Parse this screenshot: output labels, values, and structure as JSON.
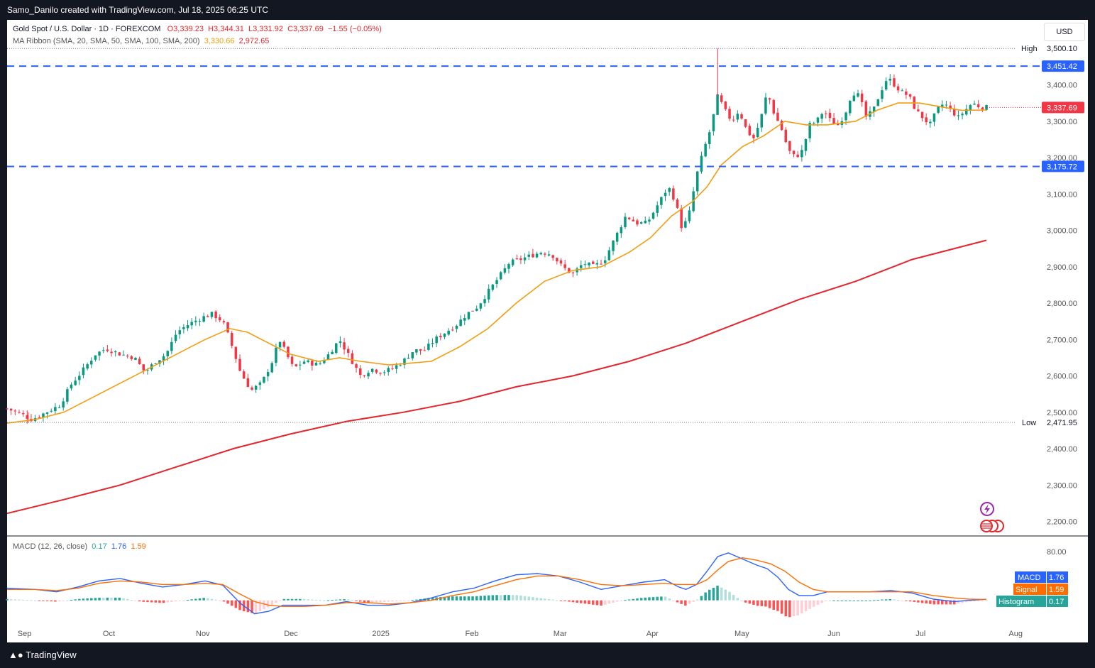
{
  "header": {
    "caption": "Samo_Danilo created with TradingView.com, Jul 18, 2025 06:25 UTC"
  },
  "legend": {
    "symbol": "Gold Spot / U.S. Dollar · 1D · FOREXCOM",
    "open": "O3,339.23",
    "high": "H3,344.31",
    "low": "L3,331.92",
    "close": "C3,337.69",
    "change": "−1.55 (−0.05%)",
    "ma_label": "MA Ribbon (SMA, 20, SMA, 50, SMA, 100, SMA, 200)",
    "ma_value_1": "3,330.66",
    "ma_value_2": "2,972.65",
    "macd_label": "MACD (12, 26, close)",
    "macd_value_1": "0.17",
    "macd_value_2": "1.76",
    "macd_value_3": "1.59"
  },
  "currency_button": "USD",
  "footer": {
    "brand": "TradingView"
  },
  "colors": {
    "up": "#089981",
    "down": "#f23645",
    "sma20": "#f29d0f",
    "sma200": "#e4262c",
    "level": "#2962ff",
    "macd": "#2962ff",
    "signal": "#ff6d00"
  },
  "chart_data": [
    {
      "type": "candlestick",
      "y_ticks": [
        "3,400.00",
        "3,300.00",
        "3,200.00",
        "3,100.00",
        "3,000.00",
        "2,900.00",
        "2,800.00",
        "2,700.00",
        "2,600.00",
        "2,500.00",
        "2,400.00",
        "2,300.00",
        "2,200.00"
      ],
      "x_ticks": [
        "Sep",
        "Oct",
        "Nov",
        "Dec",
        "2025",
        "Feb",
        "Mar",
        "Apr",
        "May",
        "Jun",
        "Jul",
        "Aug"
      ],
      "ylim": [
        2160,
        3520
      ],
      "labels": {
        "high_label": "High",
        "high_value": "3,500.10",
        "low_label": "Low",
        "low_value": "2,471.95",
        "resistance": "3,451.42",
        "support": "3,175.72",
        "last_price": "3,337.69"
      },
      "levels": {
        "high": 3500.1,
        "low": 2471.95,
        "resistance": 3451.42,
        "support": 3175.72,
        "last": 3337.69
      },
      "close_path": [
        [
          0,
          2510
        ],
        [
          20,
          2495
        ],
        [
          35,
          2480
        ],
        [
          55,
          2500
        ],
        [
          75,
          2520
        ],
        [
          90,
          2575
        ],
        [
          105,
          2610
        ],
        [
          125,
          2660
        ],
        [
          140,
          2675
        ],
        [
          160,
          2660
        ],
        [
          180,
          2650
        ],
        [
          195,
          2610
        ],
        [
          210,
          2640
        ],
        [
          225,
          2660
        ],
        [
          240,
          2720
        ],
        [
          255,
          2740
        ],
        [
          275,
          2760
        ],
        [
          290,
          2770
        ],
        [
          305,
          2750
        ],
        [
          315,
          2700
        ],
        [
          330,
          2610
        ],
        [
          345,
          2560
        ],
        [
          360,
          2580
        ],
        [
          375,
          2640
        ],
        [
          385,
          2700
        ],
        [
          395,
          2660
        ],
        [
          405,
          2620
        ],
        [
          420,
          2640
        ],
        [
          440,
          2630
        ],
        [
          455,
          2660
        ],
        [
          470,
          2700
        ],
        [
          485,
          2650
        ],
        [
          500,
          2600
        ],
        [
          515,
          2620
        ],
        [
          530,
          2610
        ],
        [
          545,
          2620
        ],
        [
          560,
          2640
        ],
        [
          575,
          2670
        ],
        [
          590,
          2670
        ],
        [
          605,
          2700
        ],
        [
          620,
          2720
        ],
        [
          635,
          2740
        ],
        [
          650,
          2770
        ],
        [
          665,
          2790
        ],
        [
          680,
          2830
        ],
        [
          695,
          2870
        ],
        [
          710,
          2910
        ],
        [
          725,
          2920
        ],
        [
          740,
          2930
        ],
        [
          755,
          2940
        ],
        [
          770,
          2935
        ],
        [
          785,
          2900
        ],
        [
          800,
          2880
        ],
        [
          815,
          2910
        ],
        [
          830,
          2900
        ],
        [
          845,
          2920
        ],
        [
          860,
          2980
        ],
        [
          875,
          3040
        ],
        [
          890,
          3020
        ],
        [
          905,
          3020
        ],
        [
          920,
          3070
        ],
        [
          935,
          3120
        ],
        [
          945,
          3080
        ],
        [
          955,
          3000
        ],
        [
          965,
          3050
        ],
        [
          975,
          3150
        ],
        [
          985,
          3220
        ],
        [
          995,
          3280
        ],
        [
          1005,
          3370
        ],
        [
          1015,
          3330
        ],
        [
          1025,
          3300
        ],
        [
          1035,
          3330
        ],
        [
          1045,
          3280
        ],
        [
          1055,
          3250
        ],
        [
          1065,
          3300
        ],
        [
          1075,
          3380
        ],
        [
          1085,
          3320
        ],
        [
          1095,
          3280
        ],
        [
          1105,
          3220
        ],
        [
          1115,
          3200
        ],
        [
          1125,
          3220
        ],
        [
          1135,
          3290
        ],
        [
          1145,
          3300
        ],
        [
          1155,
          3330
        ],
        [
          1165,
          3300
        ],
        [
          1175,
          3290
        ],
        [
          1185,
          3320
        ],
        [
          1195,
          3380
        ],
        [
          1205,
          3370
        ],
        [
          1215,
          3310
        ],
        [
          1225,
          3330
        ],
        [
          1235,
          3380
        ],
        [
          1245,
          3420
        ],
        [
          1255,
          3400
        ],
        [
          1265,
          3380
        ],
        [
          1275,
          3370
        ],
        [
          1285,
          3330
        ],
        [
          1295,
          3310
        ],
        [
          1305,
          3290
        ],
        [
          1315,
          3330
        ],
        [
          1325,
          3350
        ],
        [
          1335,
          3330
        ],
        [
          1345,
          3310
        ],
        [
          1355,
          3330
        ],
        [
          1365,
          3350
        ],
        [
          1375,
          3340
        ],
        [
          1385,
          3337.69
        ]
      ],
      "sma20": [
        [
          0,
          2470
        ],
        [
          40,
          2480
        ],
        [
          80,
          2500
        ],
        [
          120,
          2540
        ],
        [
          160,
          2580
        ],
        [
          200,
          2620
        ],
        [
          240,
          2660
        ],
        [
          280,
          2700
        ],
        [
          315,
          2730
        ],
        [
          340,
          2720
        ],
        [
          370,
          2690
        ],
        [
          400,
          2660
        ],
        [
          440,
          2640
        ],
        [
          470,
          2650
        ],
        [
          500,
          2640
        ],
        [
          540,
          2630
        ],
        [
          570,
          2635
        ],
        [
          600,
          2640
        ],
        [
          640,
          2680
        ],
        [
          680,
          2730
        ],
        [
          720,
          2800
        ],
        [
          760,
          2860
        ],
        [
          800,
          2890
        ],
        [
          840,
          2900
        ],
        [
          880,
          2940
        ],
        [
          910,
          2980
        ],
        [
          940,
          3040
        ],
        [
          970,
          3080
        ],
        [
          990,
          3120
        ],
        [
          1010,
          3180
        ],
        [
          1040,
          3230
        ],
        [
          1070,
          3260
        ],
        [
          1100,
          3300
        ],
        [
          1130,
          3290
        ],
        [
          1160,
          3290
        ],
        [
          1200,
          3300
        ],
        [
          1230,
          3330
        ],
        [
          1260,
          3350
        ],
        [
          1290,
          3350
        ],
        [
          1320,
          3340
        ],
        [
          1350,
          3330
        ],
        [
          1385,
          3330.66
        ]
      ],
      "sma200": [
        [
          0,
          2222
        ],
        [
          80,
          2260
        ],
        [
          160,
          2300
        ],
        [
          240,
          2350
        ],
        [
          320,
          2400
        ],
        [
          400,
          2440
        ],
        [
          480,
          2475
        ],
        [
          560,
          2500
        ],
        [
          640,
          2530
        ],
        [
          720,
          2570
        ],
        [
          800,
          2600
        ],
        [
          880,
          2640
        ],
        [
          960,
          2690
        ],
        [
          1040,
          2750
        ],
        [
          1120,
          2810
        ],
        [
          1200,
          2860
        ],
        [
          1280,
          2920
        ],
        [
          1385,
          2972.65
        ]
      ]
    },
    {
      "type": "macd",
      "values": {
        "macd": "1.76",
        "signal": "1.59",
        "histogram": "0.17"
      },
      "legend": [
        "MACD",
        "Signal",
        "Histogram"
      ],
      "y_ticks": [
        "80.00"
      ],
      "ylim": [
        -40,
        100
      ],
      "macd_path": [
        [
          0,
          20
        ],
        [
          40,
          18
        ],
        [
          70,
          14
        ],
        [
          100,
          22
        ],
        [
          130,
          32
        ],
        [
          160,
          36
        ],
        [
          190,
          28
        ],
        [
          220,
          22
        ],
        [
          250,
          26
        ],
        [
          280,
          32
        ],
        [
          305,
          25
        ],
        [
          330,
          -5
        ],
        [
          350,
          -22
        ],
        [
          370,
          -18
        ],
        [
          390,
          -8
        ],
        [
          420,
          -8
        ],
        [
          450,
          -8
        ],
        [
          480,
          -2
        ],
        [
          510,
          -8
        ],
        [
          540,
          -8
        ],
        [
          570,
          -4
        ],
        [
          600,
          4
        ],
        [
          630,
          14
        ],
        [
          660,
          20
        ],
        [
          690,
          32
        ],
        [
          720,
          42
        ],
        [
          750,
          44
        ],
        [
          780,
          40
        ],
        [
          810,
          30
        ],
        [
          840,
          18
        ],
        [
          870,
          24
        ],
        [
          900,
          30
        ],
        [
          930,
          34
        ],
        [
          950,
          22
        ],
        [
          960,
          18
        ],
        [
          975,
          26
        ],
        [
          990,
          48
        ],
        [
          1005,
          72
        ],
        [
          1020,
          78
        ],
        [
          1040,
          68
        ],
        [
          1060,
          58
        ],
        [
          1075,
          52
        ],
        [
          1090,
          38
        ],
        [
          1105,
          18
        ],
        [
          1120,
          8
        ],
        [
          1140,
          8
        ],
        [
          1160,
          14
        ],
        [
          1190,
          14
        ],
        [
          1220,
          14
        ],
        [
          1250,
          16
        ],
        [
          1280,
          12
        ],
        [
          1310,
          2
        ],
        [
          1340,
          -2
        ],
        [
          1360,
          0
        ],
        [
          1385,
          1.76
        ]
      ],
      "signal_path": [
        [
          0,
          18
        ],
        [
          40,
          18
        ],
        [
          70,
          16
        ],
        [
          100,
          20
        ],
        [
          130,
          28
        ],
        [
          160,
          32
        ],
        [
          190,
          30
        ],
        [
          220,
          26
        ],
        [
          250,
          26
        ],
        [
          280,
          28
        ],
        [
          305,
          26
        ],
        [
          330,
          10
        ],
        [
          350,
          -2
        ],
        [
          370,
          -8
        ],
        [
          390,
          -10
        ],
        [
          420,
          -10
        ],
        [
          450,
          -8
        ],
        [
          480,
          -4
        ],
        [
          510,
          -4
        ],
        [
          540,
          -6
        ],
        [
          570,
          -4
        ],
        [
          600,
          0
        ],
        [
          630,
          8
        ],
        [
          660,
          14
        ],
        [
          690,
          24
        ],
        [
          720,
          34
        ],
        [
          750,
          40
        ],
        [
          780,
          40
        ],
        [
          810,
          34
        ],
        [
          840,
          26
        ],
        [
          870,
          24
        ],
        [
          900,
          26
        ],
        [
          930,
          28
        ],
        [
          950,
          26
        ],
        [
          975,
          26
        ],
        [
          990,
          34
        ],
        [
          1005,
          50
        ],
        [
          1020,
          64
        ],
        [
          1040,
          70
        ],
        [
          1060,
          66
        ],
        [
          1080,
          60
        ],
        [
          1100,
          48
        ],
        [
          1120,
          30
        ],
        [
          1140,
          18
        ],
        [
          1160,
          14
        ],
        [
          1190,
          14
        ],
        [
          1220,
          14
        ],
        [
          1250,
          14
        ],
        [
          1280,
          14
        ],
        [
          1310,
          8
        ],
        [
          1340,
          4
        ],
        [
          1360,
          2
        ],
        [
          1385,
          1.59
        ]
      ]
    }
  ]
}
